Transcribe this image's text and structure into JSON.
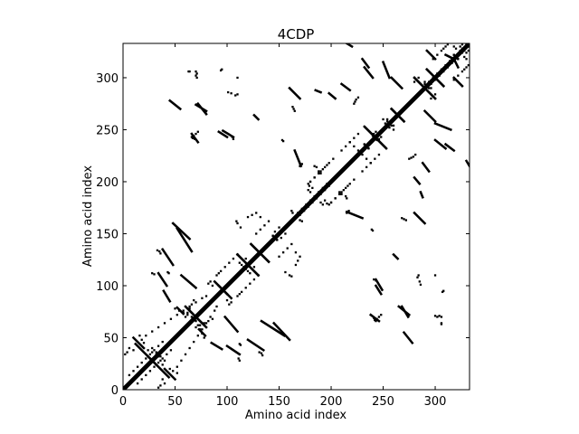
{
  "chart_data": {
    "type": "heatmap",
    "title": "4CDP",
    "xlabel": "Amino acid index",
    "ylabel": "Amino acid index",
    "xlim": [
      0,
      333
    ],
    "ylim": [
      0,
      333
    ],
    "xticks": [
      0,
      50,
      100,
      150,
      200,
      250,
      300
    ],
    "yticks": [
      0,
      50,
      100,
      150,
      200,
      250,
      300
    ],
    "grid": false,
    "legend": "none",
    "colors": {
      "contact": "#000000",
      "background": "#ffffff",
      "frame": "#000000"
    },
    "diagonal_band": {
      "from": 0,
      "to": 333,
      "halfwidth": 3
    },
    "contact_segments": [
      {
        "i": [
          52,
          58
        ],
        "j": [
          79,
          73
        ]
      },
      {
        "i": [
          60,
          78
        ],
        "j": [
          80,
          62
        ]
      },
      {
        "i": [
          88,
          100
        ],
        "j": [
          104,
          92
        ]
      },
      {
        "i": [
          110,
          130
        ],
        "j": [
          130,
          110
        ]
      },
      {
        "i": [
          123,
          140
        ],
        "j": [
          140,
          123
        ]
      },
      {
        "i": [
          232,
          252
        ],
        "j": [
          253,
          233
        ]
      },
      {
        "i": [
          258,
          270
        ],
        "j": [
          270,
          258
        ]
      },
      {
        "i": [
          280,
          300
        ],
        "j": [
          300,
          280
        ]
      },
      {
        "i": [
          292,
          308
        ],
        "j": [
          308,
          292
        ]
      },
      {
        "i": [
          12,
          32
        ],
        "j": [
          44,
          24
        ]
      },
      {
        "i": [
          133,
          155
        ],
        "j": [
          66,
          52
        ]
      },
      {
        "i": [
          98,
          110
        ],
        "j": [
          70,
          56
        ]
      },
      {
        "i": [
          85,
          95
        ],
        "j": [
          45,
          39
        ]
      },
      {
        "i": [
          70,
          80
        ],
        "j": [
          274,
          268
        ]
      },
      {
        "i": [
          96,
          106
        ],
        "j": [
          249,
          243
        ]
      },
      {
        "i": [
          48,
          64
        ],
        "j": [
          160,
          145
        ]
      },
      {
        "i": [
          34,
          42
        ],
        "j": [
          112,
          100
        ]
      },
      {
        "i": [
          165,
          171
        ],
        "j": [
          230,
          215
        ]
      },
      {
        "i": [
          160,
          170
        ],
        "j": [
          290,
          280
        ]
      },
      {
        "i": [
          185,
          190
        ],
        "j": [
          288,
          286
        ]
      },
      {
        "i": [
          198,
          204
        ],
        "j": [
          285,
          280
        ]
      },
      {
        "i": [
          230,
          236
        ],
        "j": [
          318,
          310
        ]
      },
      {
        "i": [
          258,
          268
        ],
        "j": [
          300,
          290
        ]
      },
      {
        "i": [
          250,
          256
        ],
        "j": [
          315,
          300
        ]
      },
      {
        "i": [
          270,
          278
        ],
        "j": [
          55,
          45
        ]
      },
      {
        "i": [
          265,
          275
        ],
        "j": [
          80,
          72
        ]
      },
      {
        "i": [
          243,
          248
        ],
        "j": [
          100,
          92
        ]
      },
      {
        "i": [
          238,
          246
        ],
        "j": [
          72,
          66
        ]
      },
      {
        "i": [
          40,
          50
        ],
        "j": [
          20,
          10
        ]
      },
      {
        "i": [
          120,
          135
        ],
        "j": [
          48,
          38
        ]
      },
      {
        "i": [
          300,
          310
        ],
        "j": [
          240,
          232
        ]
      },
      {
        "i": [
          310,
          318
        ],
        "j": [
          322,
          318
        ]
      },
      {
        "i": [
          330,
          333
        ],
        "j": [
          220,
          215
        ]
      },
      {
        "i": [
          288,
          294
        ],
        "j": [
          218,
          210
        ]
      },
      {
        "i": [
          318,
          326
        ],
        "j": [
          300,
          292
        ]
      },
      {
        "i": [
          260,
          264
        ],
        "j": [
          130,
          126
        ]
      }
    ],
    "contact_dots": [
      [
        94,
        307
      ],
      [
        95,
        308
      ],
      [
        63,
        306
      ],
      [
        64,
        306
      ],
      [
        33,
        134
      ],
      [
        35,
        133
      ],
      [
        36,
        131
      ],
      [
        30,
        111
      ],
      [
        28,
        112
      ],
      [
        43,
        113
      ],
      [
        44,
        112
      ],
      [
        66,
        243
      ],
      [
        67,
        242
      ],
      [
        68,
        242
      ],
      [
        69,
        241
      ],
      [
        153,
        240
      ],
      [
        154,
        239
      ],
      [
        162,
        172
      ],
      [
        163,
        170
      ],
      [
        101,
        286
      ],
      [
        104,
        285
      ],
      [
        108,
        283
      ],
      [
        110,
        284
      ],
      [
        178,
        198
      ],
      [
        179,
        196
      ],
      [
        182,
        194
      ],
      [
        190,
        180
      ],
      [
        192,
        178
      ],
      [
        170,
        215
      ],
      [
        172,
        217
      ],
      [
        208,
        190
      ],
      [
        210,
        188
      ],
      [
        214,
        186
      ],
      [
        215,
        184
      ],
      [
        244,
        240
      ],
      [
        246,
        241
      ],
      [
        248,
        243
      ],
      [
        242,
        67
      ],
      [
        244,
        68
      ],
      [
        246,
        70
      ],
      [
        248,
        72
      ],
      [
        302,
        70
      ],
      [
        304,
        71
      ],
      [
        306,
        70
      ],
      [
        300,
        71
      ],
      [
        241,
        106
      ],
      [
        243,
        105
      ],
      [
        110,
        90
      ],
      [
        112,
        92
      ],
      [
        114,
        94
      ],
      [
        82,
        102
      ],
      [
        84,
        104
      ],
      [
        86,
        100
      ],
      [
        268,
        165
      ],
      [
        270,
        164
      ],
      [
        272,
        163
      ],
      [
        275,
        222
      ],
      [
        277,
        223
      ],
      [
        279,
        224
      ],
      [
        281,
        226
      ],
      [
        300,
        110
      ],
      [
        160,
        110
      ],
      [
        162,
        109
      ],
      [
        156,
        113
      ],
      [
        16,
        52
      ],
      [
        20,
        45
      ],
      [
        24,
        38
      ],
      [
        28,
        36
      ],
      [
        32,
        34
      ],
      [
        36,
        32
      ],
      [
        40,
        28
      ],
      [
        6,
        40
      ],
      [
        10,
        38
      ],
      [
        4,
        36
      ],
      [
        2,
        34
      ],
      [
        14,
        6
      ],
      [
        18,
        10
      ],
      [
        22,
        14
      ],
      [
        26,
        18
      ],
      [
        30,
        22
      ],
      [
        34,
        26
      ],
      [
        38,
        30
      ],
      [
        42,
        34
      ],
      [
        46,
        38
      ],
      [
        48,
        18
      ],
      [
        52,
        22
      ],
      [
        56,
        28
      ],
      [
        60,
        34
      ],
      [
        64,
        40
      ],
      [
        68,
        46
      ],
      [
        72,
        52
      ],
      [
        76,
        58
      ],
      [
        80,
        64
      ],
      [
        84,
        70
      ],
      [
        88,
        76
      ],
      [
        90,
        80
      ],
      [
        170,
        168
      ],
      [
        174,
        172
      ],
      [
        178,
        176
      ],
      [
        182,
        180
      ],
      [
        186,
        184
      ],
      [
        190,
        188
      ],
      [
        194,
        192
      ],
      [
        198,
        196
      ],
      [
        232,
        236
      ],
      [
        236,
        232
      ],
      [
        318,
        322
      ],
      [
        322,
        318
      ],
      [
        326,
        324
      ],
      [
        328,
        326
      ],
      [
        332,
        330
      ],
      [
        330,
        332
      ],
      [
        318,
        330
      ],
      [
        320,
        328
      ],
      [
        324,
        330
      ],
      [
        326,
        332
      ],
      [
        250,
        260
      ],
      [
        254,
        258
      ],
      [
        256,
        252
      ],
      [
        260,
        254
      ],
      [
        120,
        166
      ],
      [
        124,
        168
      ],
      [
        128,
        170
      ],
      [
        132,
        166
      ],
      [
        190,
        210
      ],
      [
        194,
        214
      ],
      [
        198,
        218
      ],
      [
        202,
        222
      ],
      [
        298,
        318
      ],
      [
        302,
        322
      ],
      [
        306,
        326
      ],
      [
        308,
        328
      ],
      [
        310,
        330
      ],
      [
        312,
        332
      ],
      [
        280,
        296
      ],
      [
        284,
        300
      ],
      [
        290,
        296
      ],
      [
        294,
        290
      ],
      [
        296,
        294
      ],
      [
        300,
        298
      ],
      [
        304,
        302
      ],
      [
        308,
        306
      ],
      [
        312,
        310
      ],
      [
        316,
        314
      ],
      [
        128,
        150
      ],
      [
        132,
        154
      ],
      [
        136,
        158
      ],
      [
        140,
        162
      ],
      [
        144,
        148
      ],
      [
        148,
        144
      ],
      [
        152,
        146
      ],
      [
        156,
        150
      ],
      [
        98,
        118
      ],
      [
        102,
        122
      ],
      [
        106,
        126
      ],
      [
        110,
        130
      ],
      [
        114,
        120
      ],
      [
        118,
        116
      ],
      [
        122,
        112
      ],
      [
        126,
        118
      ],
      [
        60,
        70
      ],
      [
        62,
        74
      ],
      [
        64,
        78
      ],
      [
        66,
        82
      ],
      [
        68,
        86
      ],
      [
        70,
        66
      ],
      [
        72,
        62
      ],
      [
        74,
        58
      ],
      [
        76,
        54
      ],
      [
        78,
        50
      ],
      [
        210,
        230
      ],
      [
        214,
        234
      ],
      [
        218,
        238
      ],
      [
        222,
        242
      ],
      [
        226,
        246
      ],
      [
        230,
        226
      ],
      [
        234,
        222
      ],
      [
        238,
        218
      ],
      [
        180,
        200
      ],
      [
        184,
        204
      ],
      [
        188,
        208
      ],
      [
        200,
        180
      ],
      [
        204,
        184
      ],
      [
        208,
        188
      ],
      [
        212,
        192
      ],
      [
        216,
        196
      ]
    ]
  }
}
